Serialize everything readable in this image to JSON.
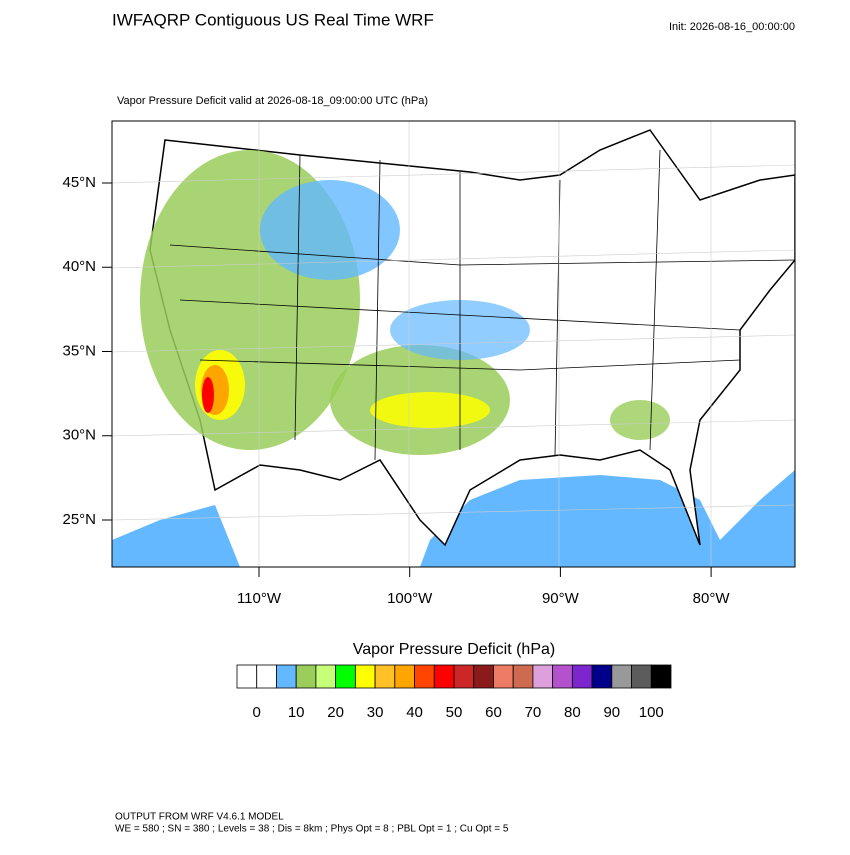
{
  "header": {
    "title": "IWFAQRP Contiguous US Real Time WRF",
    "init": "Init: 2026-08-16_00:00:00"
  },
  "map": {
    "subtitle": "Vapor Pressure Deficit valid at 2026-08-18_09:00:00 UTC   (hPa)",
    "lat_labels": [
      "45°N",
      "40°N",
      "35°N",
      "30°N",
      "25°N"
    ],
    "lon_labels": [
      "110°W",
      "100°W",
      "90°W",
      "80°W"
    ]
  },
  "colorbar": {
    "title": "Vapor Pressure Deficit  (hPa)",
    "colors": [
      "#ffffff",
      "#ffffff",
      "#63b8ff",
      "#9acd5a",
      "#c6ff78",
      "#00ff00",
      "#ffff00",
      "#ffc125",
      "#ffa500",
      "#ff4500",
      "#ff0000",
      "#cd2626",
      "#8b1a1a",
      "#ee7b64",
      "#cd6a50",
      "#dda0dd",
      "#b452cd",
      "#7d26cd",
      "#00008b",
      "#999999",
      "#5c5c5c",
      "#000000"
    ],
    "ticks": [
      0,
      10,
      20,
      30,
      40,
      50,
      60,
      70,
      80,
      90,
      100
    ]
  },
  "footer": {
    "line1": "OUTPUT FROM WRF V4.6.1 MODEL",
    "line2": "WE = 580 ; SN = 380 ; Levels = 38 ; Dis = 8km ; Phys Opt = 8 ; PBL Opt = 1 ; Cu Opt = 5"
  }
}
